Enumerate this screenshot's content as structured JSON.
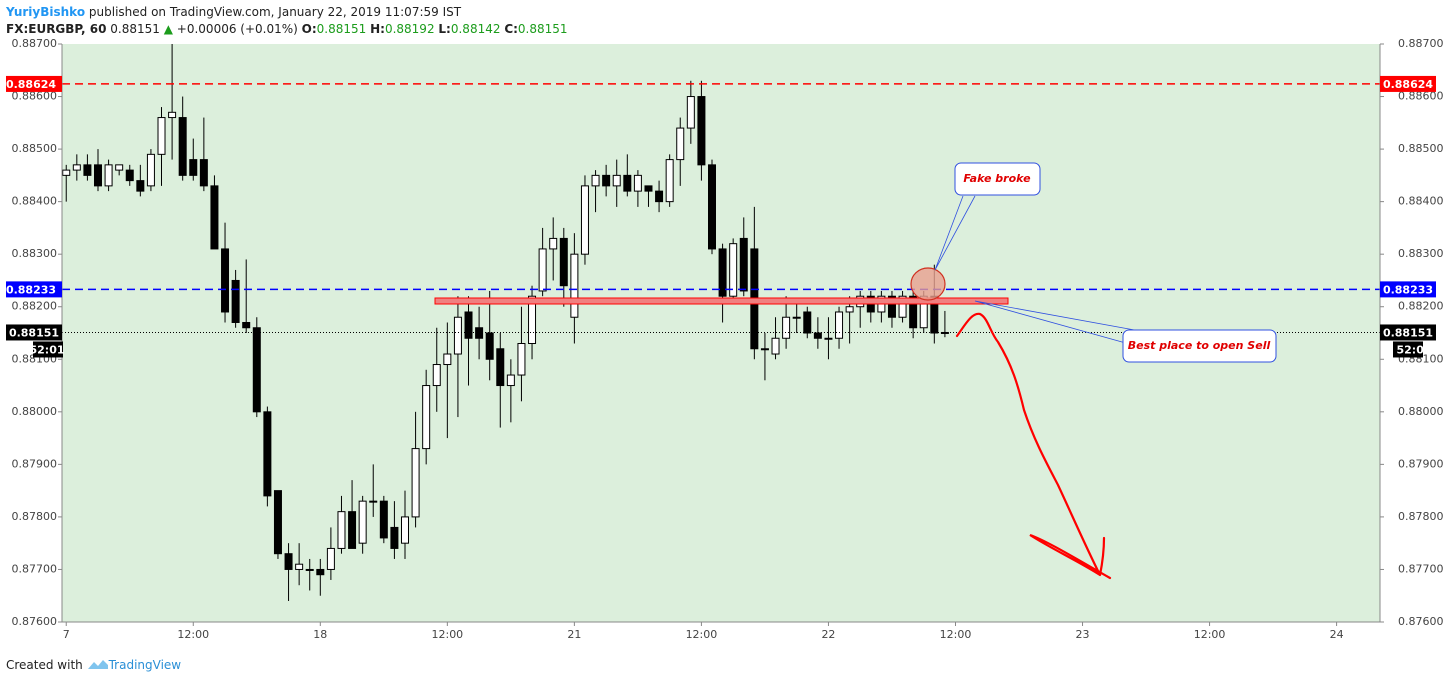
{
  "header": {
    "author": "YuriyBishko",
    "published": "published on TradingView.com, January 22, 2019 11:07:59 IST",
    "symbol": "FX:EURGBP, 60",
    "change": "+0.00006 (+0.01%)",
    "ohlc_labels": [
      "O:",
      "H:",
      "L:",
      "C:"
    ]
  },
  "footer": {
    "text": "Created with",
    "brand": "TradingView"
  },
  "chart_data": {
    "type": "candlestick",
    "x": [
      0,
      1,
      2,
      3,
      4,
      5,
      6,
      7,
      8,
      9,
      10,
      11,
      12,
      13,
      14,
      15,
      16,
      17,
      18,
      19,
      20,
      21,
      22,
      23,
      24,
      25,
      26,
      27,
      28,
      29,
      30,
      31,
      32,
      33,
      34,
      35,
      36,
      37,
      38,
      39,
      40,
      41,
      42,
      43,
      44,
      45,
      46,
      47,
      48,
      49,
      50,
      51,
      52,
      53,
      54,
      55,
      56,
      57,
      58,
      59,
      60,
      61,
      62,
      63,
      64,
      65,
      66,
      67,
      68,
      69,
      70,
      71,
      72,
      73,
      74,
      75,
      76,
      77,
      78,
      79,
      80,
      81,
      82,
      83
    ],
    "open": [
      0.8845,
      0.8846,
      0.8847,
      0.8847,
      0.8843,
      0.8846,
      0.8846,
      0.8844,
      0.8843,
      0.8849,
      0.8856,
      0.8856,
      0.8848,
      0.8848,
      0.8843,
      0.8831,
      0.8825,
      0.8817,
      0.8816,
      0.88,
      0.8785,
      0.8773,
      0.877,
      0.877,
      0.877,
      0.877,
      0.8774,
      0.8781,
      0.8775,
      0.8783,
      0.8783,
      0.8778,
      0.8775,
      0.878,
      0.8793,
      0.8805,
      0.8809,
      0.8811,
      0.8819,
      0.8816,
      0.8815,
      0.8812,
      0.8805,
      0.8807,
      0.8813,
      0.8823,
      0.8831,
      0.8833,
      0.8818,
      0.883,
      0.8843,
      0.8845,
      0.8843,
      0.8845,
      0.8842,
      0.8843,
      0.8842,
      0.884,
      0.8848,
      0.8854,
      0.886,
      0.8847,
      0.8831,
      0.8822,
      0.8833,
      0.8831,
      0.8812,
      0.8811,
      0.8814,
      0.8818,
      0.8819,
      0.8815,
      0.8814,
      0.8814,
      0.8819,
      0.882,
      0.8822,
      0.8819,
      0.8822,
      0.8818,
      0.8822,
      0.8816,
      0.8822,
      0.88151
    ],
    "high": [
      0.8847,
      0.8849,
      0.8849,
      0.885,
      0.8848,
      0.8847,
      0.8847,
      0.8847,
      0.885,
      0.8858,
      0.887,
      0.886,
      0.8852,
      0.8856,
      0.8845,
      0.8836,
      0.8827,
      0.8829,
      0.8818,
      0.8801,
      0.8785,
      0.8775,
      0.8775,
      0.8772,
      0.8772,
      0.8778,
      0.8784,
      0.8787,
      0.8784,
      0.879,
      0.8784,
      0.8783,
      0.8785,
      0.88,
      0.8808,
      0.8816,
      0.8817,
      0.8822,
      0.8822,
      0.882,
      0.8823,
      0.8815,
      0.881,
      0.882,
      0.8824,
      0.8835,
      0.8837,
      0.8835,
      0.8834,
      0.8845,
      0.8846,
      0.8847,
      0.8848,
      0.8849,
      0.8846,
      0.8843,
      0.8844,
      0.8849,
      0.8856,
      0.8863,
      0.8863,
      0.8848,
      0.8832,
      0.8833,
      0.8837,
      0.8839,
      0.8815,
      0.8818,
      0.8822,
      0.8821,
      0.882,
      0.8818,
      0.8818,
      0.882,
      0.8822,
      0.8823,
      0.8823,
      0.8823,
      0.8823,
      0.8823,
      0.8823,
      0.8823,
      0.8828,
      0.88192
    ],
    "low": [
      0.884,
      0.8844,
      0.8844,
      0.8842,
      0.8842,
      0.8845,
      0.8843,
      0.8841,
      0.8842,
      0.8843,
      0.8848,
      0.8844,
      0.8844,
      0.8842,
      0.8831,
      0.8817,
      0.8816,
      0.8815,
      0.8799,
      0.8782,
      0.8772,
      0.8764,
      0.8767,
      0.8766,
      0.8765,
      0.8768,
      0.8773,
      0.8774,
      0.8773,
      0.878,
      0.8775,
      0.8772,
      0.8772,
      0.8778,
      0.879,
      0.88,
      0.8795,
      0.8799,
      0.8805,
      0.881,
      0.8806,
      0.8797,
      0.8798,
      0.8802,
      0.881,
      0.8822,
      0.8825,
      0.882,
      0.8813,
      0.8828,
      0.8838,
      0.8841,
      0.8839,
      0.8841,
      0.8839,
      0.8839,
      0.8838,
      0.8839,
      0.8843,
      0.8851,
      0.8844,
      0.883,
      0.8817,
      0.8821,
      0.8822,
      0.881,
      0.8806,
      0.881,
      0.8812,
      0.8815,
      0.8814,
      0.8812,
      0.881,
      0.8812,
      0.8813,
      0.8816,
      0.8817,
      0.8817,
      0.8816,
      0.8817,
      0.8814,
      0.8815,
      0.8813,
      0.88142
    ],
    "close": [
      0.8846,
      0.8847,
      0.8845,
      0.8843,
      0.8847,
      0.8847,
      0.8844,
      0.8842,
      0.8849,
      0.8856,
      0.8857,
      0.8845,
      0.8845,
      0.8843,
      0.8831,
      0.8819,
      0.8817,
      0.8816,
      0.88,
      0.8784,
      0.8773,
      0.877,
      0.8771,
      0.877,
      0.8769,
      0.8774,
      0.8781,
      0.8774,
      0.8783,
      0.8783,
      0.8776,
      0.8774,
      0.878,
      0.8793,
      0.8805,
      0.8809,
      0.8811,
      0.8818,
      0.8814,
      0.8814,
      0.881,
      0.8805,
      0.8807,
      0.8813,
      0.8822,
      0.8831,
      0.8833,
      0.8824,
      0.883,
      0.8843,
      0.8845,
      0.8843,
      0.8845,
      0.8842,
      0.8845,
      0.8842,
      0.884,
      0.8848,
      0.8854,
      0.886,
      0.8847,
      0.8831,
      0.8822,
      0.8832,
      0.8823,
      0.8812,
      0.8812,
      0.8814,
      0.8818,
      0.8818,
      0.8815,
      0.8814,
      0.8814,
      0.8819,
      0.882,
      0.8822,
      0.8819,
      0.8822,
      0.8818,
      0.8822,
      0.8816,
      0.8822,
      0.8815,
      0.88151
    ],
    "up_color": "#ffffff",
    "down_color": "#000000",
    "background": "#dcefdc",
    "xlim": [
      -0.4,
      124.1
    ],
    "xticks": [
      {
        "value": 0,
        "label": "7"
      },
      {
        "value": 12,
        "label": "12:00"
      },
      {
        "value": 24,
        "label": "18"
      },
      {
        "value": 36,
        "label": "12:00"
      },
      {
        "value": 48,
        "label": "21"
      },
      {
        "value": 60,
        "label": "12:00"
      },
      {
        "value": 72,
        "label": "22"
      },
      {
        "value": 84,
        "label": "12:00"
      },
      {
        "value": 96,
        "label": "23"
      },
      {
        "value": 108,
        "label": "12:00"
      },
      {
        "value": 120,
        "label": "24"
      }
    ],
    "ylim": [
      0.876,
      0.887
    ],
    "yticks": [
      {
        "value": 0.876,
        "label": "0.87600"
      },
      {
        "value": 0.877,
        "label": "0.87700"
      },
      {
        "value": 0.878,
        "label": "0.87800"
      },
      {
        "value": 0.879,
        "label": "0.87900"
      },
      {
        "value": 0.88,
        "label": "0.88000"
      },
      {
        "value": 0.881,
        "label": "0.88100"
      },
      {
        "value": 0.882,
        "label": "0.88200"
      },
      {
        "value": 0.883,
        "label": "0.88300"
      },
      {
        "value": 0.884,
        "label": "0.88400"
      },
      {
        "value": 0.885,
        "label": "0.88500"
      },
      {
        "value": 0.886,
        "label": "0.88600"
      },
      {
        "value": 0.887,
        "label": "0.88700"
      }
    ],
    "levels": [
      {
        "value": 0.88624,
        "color": "#ff0000"
      },
      {
        "value": 0.88233,
        "color": "#0000ff"
      }
    ],
    "countdown": "52:01",
    "annotations": [
      "Fake broke",
      "Best place to open Sell"
    ]
  }
}
